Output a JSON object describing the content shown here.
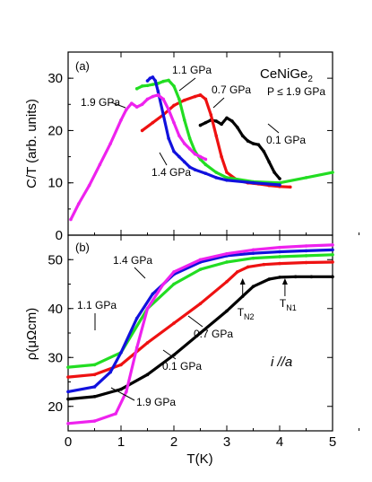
{
  "colors": {
    "0.1 GPa": "#000000",
    "0.7 GPa": "#ee1111",
    "1.1 GPa": "#22dd22",
    "1.4 GPa": "#1111dd",
    "1.9 GPa": "#ee22ee"
  },
  "chart_data": [
    {
      "panel": "(a)",
      "type": "scatter",
      "title_main": "CeNiGe",
      "title_sub": "2",
      "pressure_note": "P ≤ 1.9 GPa",
      "ylabel": "C/T (arb. units)",
      "ylim": [
        0,
        35
      ],
      "yticks": [
        0,
        10,
        20,
        30
      ],
      "xlim": [
        0,
        5
      ],
      "series": [
        {
          "name": "0.1 GPa",
          "x": [
            2.5,
            2.6,
            2.7,
            2.8,
            2.9,
            3.0,
            3.1,
            3.2,
            3.3,
            3.4,
            3.5,
            3.6,
            3.7,
            3.8,
            3.9,
            4.0
          ],
          "y": [
            21.0,
            21.5,
            22.0,
            21.8,
            21.2,
            22.4,
            21.8,
            20.6,
            19.0,
            18.0,
            17.5,
            17.3,
            16.0,
            14.0,
            12.0,
            10.8
          ]
        },
        {
          "name": "0.7 GPa",
          "x": [
            1.4,
            1.6,
            1.8,
            2.0,
            2.2,
            2.4,
            2.5,
            2.6,
            2.7,
            2.8,
            2.9,
            3.0,
            3.2,
            3.4,
            3.6,
            3.8,
            4.0,
            4.2
          ],
          "y": [
            20.0,
            21.5,
            23.0,
            24.8,
            25.8,
            26.5,
            26.8,
            26.0,
            23.0,
            19.0,
            15.0,
            12.0,
            10.5,
            10.0,
            9.8,
            9.5,
            9.3,
            9.2
          ]
        },
        {
          "name": "1.1 GPa",
          "x": [
            1.3,
            1.4,
            1.5,
            1.6,
            1.7,
            1.8,
            1.9,
            2.0,
            2.1,
            2.2,
            2.3,
            2.4,
            2.5,
            2.6,
            2.8,
            3.0,
            3.5,
            4.0,
            4.5,
            5.0
          ],
          "y": [
            28.0,
            28.5,
            28.6,
            28.8,
            29.0,
            29.4,
            29.6,
            28.5,
            26.0,
            22.0,
            18.5,
            16.0,
            14.5,
            13.5,
            12.0,
            11.0,
            10.2,
            10.0,
            11.0,
            12.0
          ]
        },
        {
          "name": "1.4 GPa",
          "x": [
            1.5,
            1.55,
            1.6,
            1.65,
            1.7,
            1.8,
            1.9,
            2.0,
            2.1,
            2.2,
            2.3,
            2.4,
            2.6,
            2.8,
            3.0,
            3.5,
            4.0
          ],
          "y": [
            29.5,
            30.0,
            30.2,
            29.5,
            27.5,
            23.0,
            18.5,
            16.0,
            15.0,
            14.0,
            13.0,
            12.5,
            11.8,
            11.0,
            10.5,
            10.0,
            9.6
          ]
        },
        {
          "name": "1.9 GPa",
          "x": [
            0.05,
            0.2,
            0.4,
            0.6,
            0.8,
            1.0,
            1.1,
            1.2,
            1.3,
            1.4,
            1.5,
            1.6,
            1.7,
            1.8,
            1.9,
            2.0,
            2.1,
            2.2,
            2.3,
            2.4,
            2.5,
            2.6
          ],
          "y": [
            3.0,
            6.0,
            9.5,
            13.5,
            17.5,
            22.0,
            24.0,
            25.2,
            24.5,
            25.0,
            26.0,
            26.5,
            26.8,
            26.0,
            24.0,
            21.5,
            19.0,
            17.5,
            16.5,
            15.5,
            15.0,
            14.5
          ]
        }
      ],
      "labels": [
        {
          "text": "1.1 GPa"
        },
        {
          "text": "0.7 GPa"
        },
        {
          "text": "1.9 GPa"
        },
        {
          "text": "0.1 GPa"
        },
        {
          "text": "1.4 GPa"
        }
      ]
    },
    {
      "panel": "(b)",
      "type": "scatter",
      "ylabel_main": "ρ(μΩcm)",
      "xlabel": "T(K)",
      "ylim": [
        15,
        55
      ],
      "yticks": [
        20,
        30,
        40,
        50
      ],
      "xlim": [
        0,
        5
      ],
      "xticks": [
        0,
        1,
        2,
        3,
        4,
        5
      ],
      "current_dir_i": "i",
      "current_dir_a": "a",
      "current_dir_sep": " //",
      "series": [
        {
          "name": "0.1 GPa",
          "x": [
            0,
            0.5,
            1.0,
            1.5,
            2.0,
            2.5,
            3.0,
            3.3,
            3.5,
            3.8,
            4.0,
            4.3,
            4.6,
            5.0
          ],
          "y": [
            21.5,
            22.0,
            23.5,
            26.5,
            30.5,
            35.0,
            39.5,
            42.5,
            44.5,
            46.0,
            46.4,
            46.5,
            46.5,
            46.5
          ]
        },
        {
          "name": "0.7 GPa",
          "x": [
            0,
            0.5,
            1.0,
            1.5,
            2.0,
            2.5,
            3.0,
            3.2,
            3.4,
            3.7,
            4.0,
            4.5,
            5.0
          ],
          "y": [
            26.0,
            26.5,
            28.5,
            33.0,
            37.0,
            41.0,
            45.5,
            47.5,
            48.5,
            49.0,
            49.2,
            49.4,
            49.5
          ]
        },
        {
          "name": "1.1 GPa",
          "x": [
            0,
            0.5,
            1.0,
            1.5,
            2.0,
            2.5,
            3.0,
            3.5,
            4.0,
            4.5,
            5.0
          ],
          "y": [
            28.0,
            28.5,
            31.0,
            40.0,
            45.0,
            48.0,
            49.5,
            50.3,
            50.6,
            50.8,
            51.0
          ]
        },
        {
          "name": "1.4 GPa",
          "x": [
            0,
            0.5,
            0.8,
            1.0,
            1.3,
            1.6,
            2.0,
            2.5,
            3.0,
            3.5,
            4.0,
            4.5,
            5.0
          ],
          "y": [
            23.0,
            24.0,
            27.0,
            31.0,
            38.0,
            43.0,
            47.0,
            49.5,
            50.8,
            51.3,
            51.6,
            51.8,
            52.0
          ]
        },
        {
          "name": "1.9 GPa",
          "x": [
            0,
            0.5,
            0.9,
            1.1,
            1.3,
            1.5,
            1.8,
            2.0,
            2.5,
            3.0,
            3.5,
            4.0,
            4.5,
            5.0
          ],
          "y": [
            16.5,
            17.0,
            18.5,
            23.0,
            32.0,
            40.0,
            45.0,
            47.5,
            50.0,
            51.2,
            52.0,
            52.5,
            52.8,
            53.0
          ]
        }
      ],
      "labels": [
        {
          "text": "1.4 GPa"
        },
        {
          "text": "1.1 GPa"
        },
        {
          "text": "0.7 GPa"
        },
        {
          "text": "0.1 GPa"
        },
        {
          "text": "1.9 GPa"
        }
      ],
      "transition_labels": [
        {
          "main": "T",
          "sub": "N2",
          "x": 3.3
        },
        {
          "main": "T",
          "sub": "N1",
          "x": 4.1
        }
      ]
    }
  ]
}
